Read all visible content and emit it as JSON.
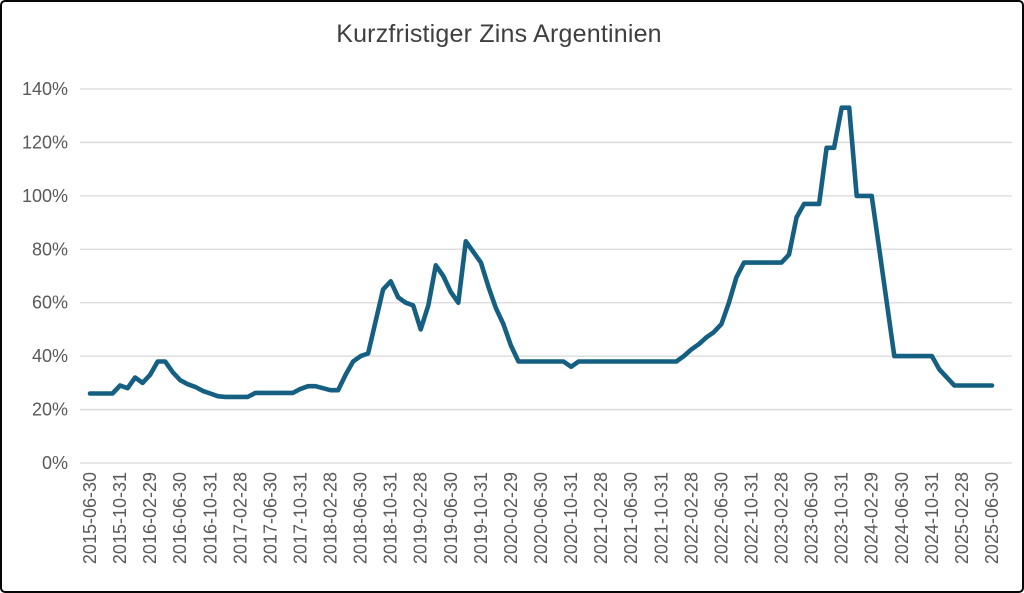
{
  "chart_title": "Kurzfristiger Zins Argentinien",
  "colors": {
    "line": "#156082",
    "grid": "#d9d9d9",
    "axis_text": "#595959",
    "title_text": "#3f3f3f",
    "background": "#ffffff",
    "border": "#060606"
  },
  "chart_data": {
    "type": "line",
    "title": "Kurzfristiger Zins Argentinien",
    "x_start": "2015-06-30",
    "x_interval": "monthly",
    "x_tick_every": 4,
    "x_tick_labels": [
      "2015-06-30",
      "2015-10-31",
      "2016-02-29",
      "2016-06-30",
      "2016-10-31",
      "2017-02-28",
      "2017-06-30",
      "2017-10-31",
      "2018-02-28",
      "2018-06-30",
      "2018-10-31",
      "2019-02-28",
      "2019-06-30",
      "2019-10-31",
      "2020-02-29",
      "2020-06-30",
      "2020-10-31",
      "2021-02-28",
      "2021-06-30",
      "2021-10-31",
      "2022-02-28",
      "2022-06-30",
      "2022-10-31",
      "2023-02-28",
      "2023-06-30",
      "2023-10-31",
      "2024-02-29",
      "2024-06-30",
      "2024-10-31",
      "2025-02-28",
      "2025-06-30"
    ],
    "y_ticks": [
      "0%",
      "20%",
      "40%",
      "60%",
      "80%",
      "100%",
      "120%",
      "140%"
    ],
    "ylim": [
      0,
      140
    ],
    "grid": "horizontal",
    "legend": "none",
    "series": [
      {
        "name": "Kurzfristiger Zins Argentinien",
        "values": [
          26,
          26,
          26,
          26,
          29,
          28,
          32,
          30,
          33,
          38,
          38,
          34,
          31,
          29.5,
          28.5,
          27,
          26,
          25,
          24.75,
          24.75,
          24.75,
          24.75,
          26.25,
          26.25,
          26.25,
          26.25,
          26.25,
          26.25,
          27.75,
          28.75,
          28.75,
          28,
          27.25,
          27.25,
          33,
          38,
          40,
          41,
          53,
          65,
          68,
          62,
          60,
          59,
          50,
          59,
          74,
          70,
          64,
          60,
          83,
          79,
          75,
          66,
          58,
          52,
          44,
          38,
          38,
          38,
          38,
          38,
          38,
          38,
          36,
          38,
          38,
          38,
          38,
          38,
          38,
          38,
          38,
          38,
          38,
          38,
          38,
          38,
          38,
          40,
          42.5,
          44.5,
          47,
          49,
          52,
          60,
          69.5,
          75,
          75,
          75,
          75,
          75,
          75,
          78,
          92,
          97,
          97,
          97,
          118,
          118,
          133,
          133,
          100,
          100,
          100,
          80,
          60,
          40,
          40,
          40,
          40,
          40,
          40,
          35,
          32,
          29,
          29,
          29,
          29,
          29,
          29
        ]
      }
    ]
  }
}
